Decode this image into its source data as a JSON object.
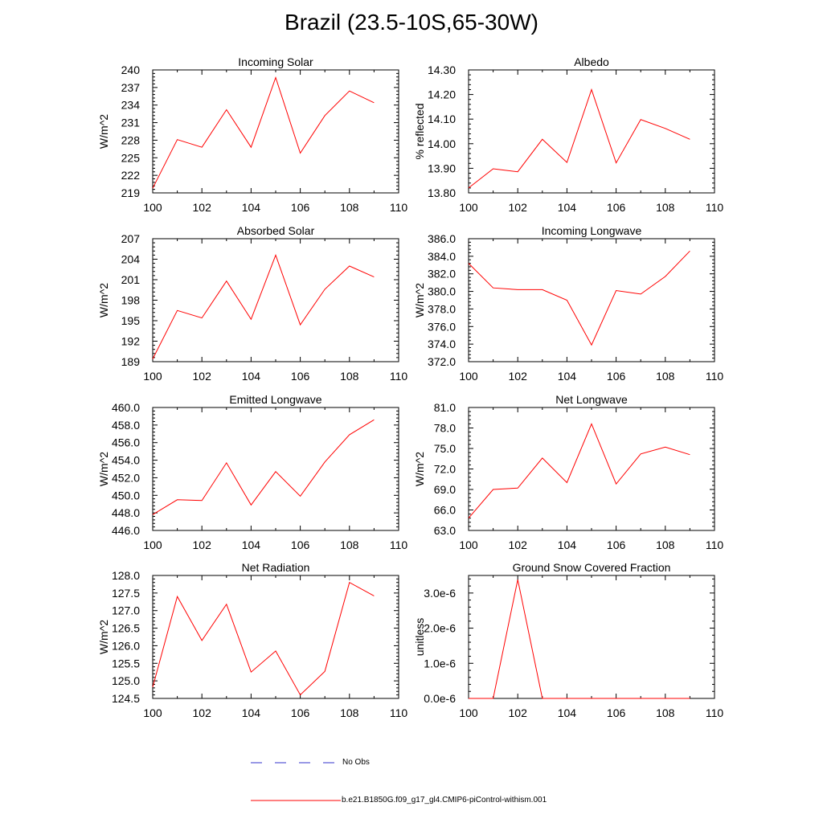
{
  "title": "Brazil (23.5-10S,65-30W)",
  "legend": {
    "obs_label": "No Obs",
    "model_label": "b.e21.B1850G.f09_g17_gl4.CMIP6-piControl-withism.001",
    "obs_color": "#3333cc",
    "model_color": "#ff0000"
  },
  "chart_data": [
    {
      "type": "line",
      "title": "Incoming Solar",
      "ylabel": "W/m^2",
      "xlim": [
        100,
        110
      ],
      "xticks": [
        "100",
        "102",
        "104",
        "106",
        "108",
        "110"
      ],
      "ylim": [
        219,
        240
      ],
      "yticks": [
        "219",
        "222",
        "225",
        "228",
        "231",
        "234",
        "237",
        "240"
      ],
      "series": [
        {
          "color": "#ff0000",
          "x": [
            100,
            101,
            102,
            103,
            104,
            105,
            106,
            107,
            108,
            109
          ],
          "y": [
            219.8,
            228.1,
            226.8,
            233.2,
            226.8,
            238.7,
            225.8,
            232.2,
            236.4,
            234.4
          ]
        }
      ]
    },
    {
      "type": "line",
      "title": "Albedo",
      "ylabel": "% reflected",
      "xlim": [
        100,
        110
      ],
      "xticks": [
        "100",
        "102",
        "104",
        "106",
        "108",
        "110"
      ],
      "ylim": [
        13.8,
        14.3
      ],
      "yticks": [
        "13.80",
        "13.90",
        "14.00",
        "14.10",
        "14.20",
        "14.30"
      ],
      "series": [
        {
          "color": "#ff0000",
          "x": [
            100,
            101,
            102,
            103,
            104,
            105,
            106,
            107,
            108,
            109
          ],
          "y": [
            13.82,
            13.898,
            13.886,
            14.018,
            13.924,
            14.22,
            13.922,
            14.098,
            14.062,
            14.018
          ]
        }
      ]
    },
    {
      "type": "line",
      "title": "Absorbed Solar",
      "ylabel": "W/m^2",
      "xlim": [
        100,
        110
      ],
      "xticks": [
        "100",
        "102",
        "104",
        "106",
        "108",
        "110"
      ],
      "ylim": [
        189,
        207
      ],
      "yticks": [
        "189",
        "192",
        "195",
        "198",
        "201",
        "204",
        "207"
      ],
      "series": [
        {
          "color": "#ff0000",
          "x": [
            100,
            101,
            102,
            103,
            104,
            105,
            106,
            107,
            108,
            109
          ],
          "y": [
            189.4,
            196.5,
            195.4,
            200.8,
            195.2,
            204.6,
            194.4,
            199.6,
            203.0,
            201.4
          ]
        }
      ]
    },
    {
      "type": "line",
      "title": "Incoming Longwave",
      "ylabel": "W/m^2",
      "xlim": [
        100,
        110
      ],
      "xticks": [
        "100",
        "102",
        "104",
        "106",
        "108",
        "110"
      ],
      "ylim": [
        372,
        386
      ],
      "yticks": [
        "372.0",
        "374.0",
        "376.0",
        "378.0",
        "380.0",
        "382.0",
        "384.0",
        "386.0"
      ],
      "series": [
        {
          "color": "#ff0000",
          "x": [
            100,
            101,
            102,
            103,
            104,
            105,
            106,
            107,
            108,
            109
          ],
          "y": [
            383.2,
            380.4,
            380.2,
            380.2,
            379.0,
            373.9,
            380.1,
            379.7,
            381.7,
            384.6
          ]
        }
      ]
    },
    {
      "type": "line",
      "title": "Emitted Longwave",
      "ylabel": "W/m^2",
      "xlim": [
        100,
        110
      ],
      "xticks": [
        "100",
        "102",
        "104",
        "106",
        "108",
        "110"
      ],
      "ylim": [
        446,
        460
      ],
      "yticks": [
        "446.0",
        "448.0",
        "450.0",
        "452.0",
        "454.0",
        "456.0",
        "458.0",
        "460.0"
      ],
      "series": [
        {
          "color": "#ff0000",
          "x": [
            100,
            101,
            102,
            103,
            104,
            105,
            106,
            107,
            108,
            109
          ],
          "y": [
            447.8,
            449.5,
            449.4,
            453.7,
            448.9,
            452.7,
            449.9,
            453.8,
            456.9,
            458.6
          ]
        }
      ]
    },
    {
      "type": "line",
      "title": "Net Longwave",
      "ylabel": "W/m^2",
      "xlim": [
        100,
        110
      ],
      "xticks": [
        "100",
        "102",
        "104",
        "106",
        "108",
        "110"
      ],
      "ylim": [
        63,
        81
      ],
      "yticks": [
        "63.0",
        "66.0",
        "69.0",
        "72.0",
        "75.0",
        "78.0",
        "81.0"
      ],
      "series": [
        {
          "color": "#ff0000",
          "x": [
            100,
            101,
            102,
            103,
            104,
            105,
            106,
            107,
            108,
            109
          ],
          "y": [
            64.8,
            69.0,
            69.2,
            73.6,
            70.0,
            78.6,
            69.8,
            74.2,
            75.2,
            74.1
          ]
        }
      ]
    },
    {
      "type": "line",
      "title": "Net Radiation",
      "ylabel": "W/m^2",
      "xlim": [
        100,
        110
      ],
      "xticks": [
        "100",
        "102",
        "104",
        "106",
        "108",
        "110"
      ],
      "ylim": [
        124.5,
        128.0
      ],
      "yticks": [
        "124.5",
        "125.0",
        "125.5",
        "126.0",
        "126.5",
        "127.0",
        "127.5",
        "128.0"
      ],
      "series": [
        {
          "color": "#ff0000",
          "x": [
            100,
            101,
            102,
            103,
            104,
            105,
            106,
            107,
            108,
            109
          ],
          "y": [
            124.82,
            127.4,
            126.15,
            127.18,
            125.25,
            125.85,
            124.6,
            125.27,
            127.8,
            127.42
          ]
        }
      ]
    },
    {
      "type": "line",
      "title": "Ground Snow Covered Fraction",
      "ylabel": "unitless",
      "xlim": [
        100,
        110
      ],
      "xticks": [
        "100",
        "102",
        "104",
        "106",
        "108",
        "110"
      ],
      "ylim": [
        0,
        3.5e-06
      ],
      "yticks": [
        "0.0e-6",
        "1.0e-6",
        "2.0e-6",
        "3.0e-6"
      ],
      "ytick_values": [
        0,
        1e-06,
        2e-06,
        3e-06
      ],
      "series": [
        {
          "color": "#ff0000",
          "x": [
            100,
            101,
            102,
            103,
            104,
            105,
            106,
            107,
            108,
            109
          ],
          "y": [
            0,
            0,
            3.38e-06,
            0,
            0,
            0,
            0,
            0,
            0,
            0
          ]
        }
      ]
    }
  ]
}
